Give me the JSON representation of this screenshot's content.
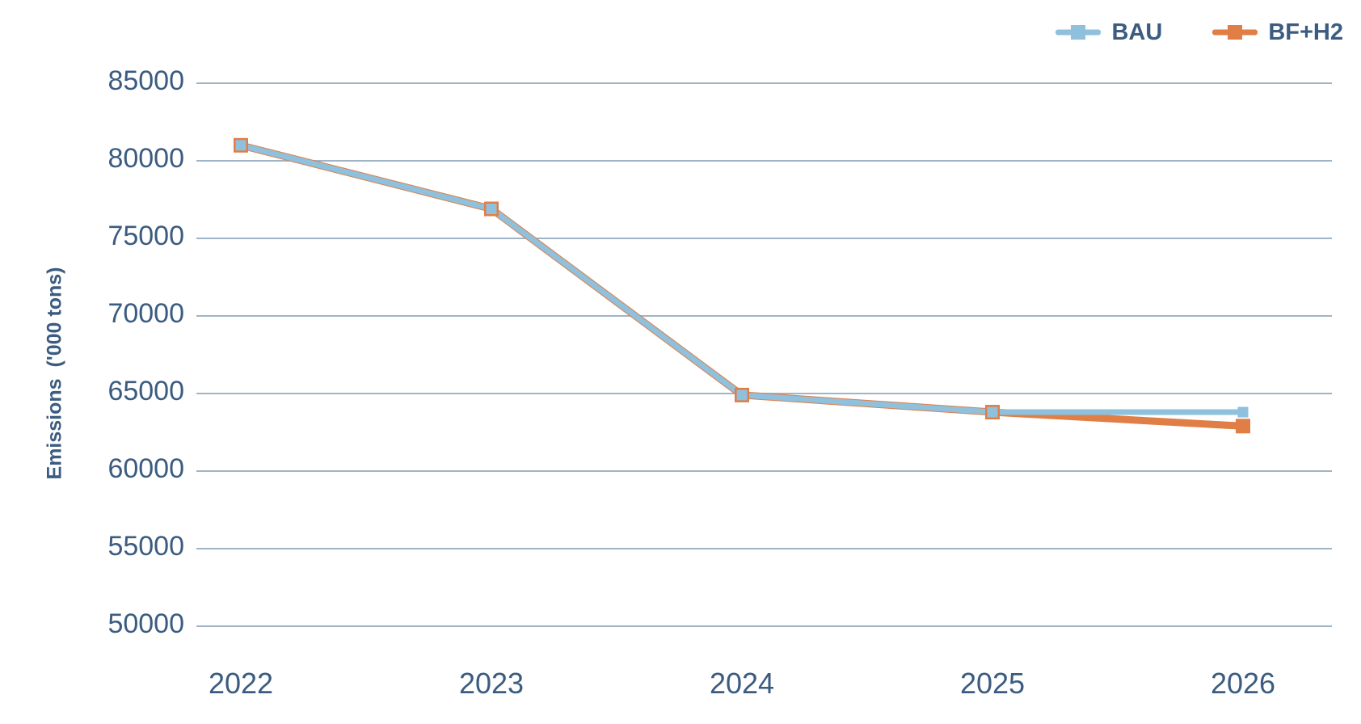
{
  "chart_data": {
    "type": "line",
    "title": "",
    "xlabel": "",
    "ylabel": "Emissions  ('000 tons)",
    "categories": [
      "2022",
      "2023",
      "2024",
      "2025",
      "2026"
    ],
    "series": [
      {
        "name": "BAU",
        "color": "#8FC0DC",
        "marker": "square",
        "values": [
          81000,
          76900,
          64900,
          63800,
          63800
        ]
      },
      {
        "name": "BF+H2",
        "color": "#E07E46",
        "marker": "square",
        "values": [
          81000,
          76900,
          64900,
          63800,
          62900
        ]
      }
    ],
    "ylim": [
      50000,
      85000
    ],
    "ytick_step": 5000,
    "yticks": [
      50000,
      55000,
      60000,
      65000,
      70000,
      75000,
      80000,
      85000
    ],
    "grid": true,
    "gridline_color": "#9FB4C6",
    "axis_text_color": "#3B5C80",
    "legend_position": "top-right"
  }
}
